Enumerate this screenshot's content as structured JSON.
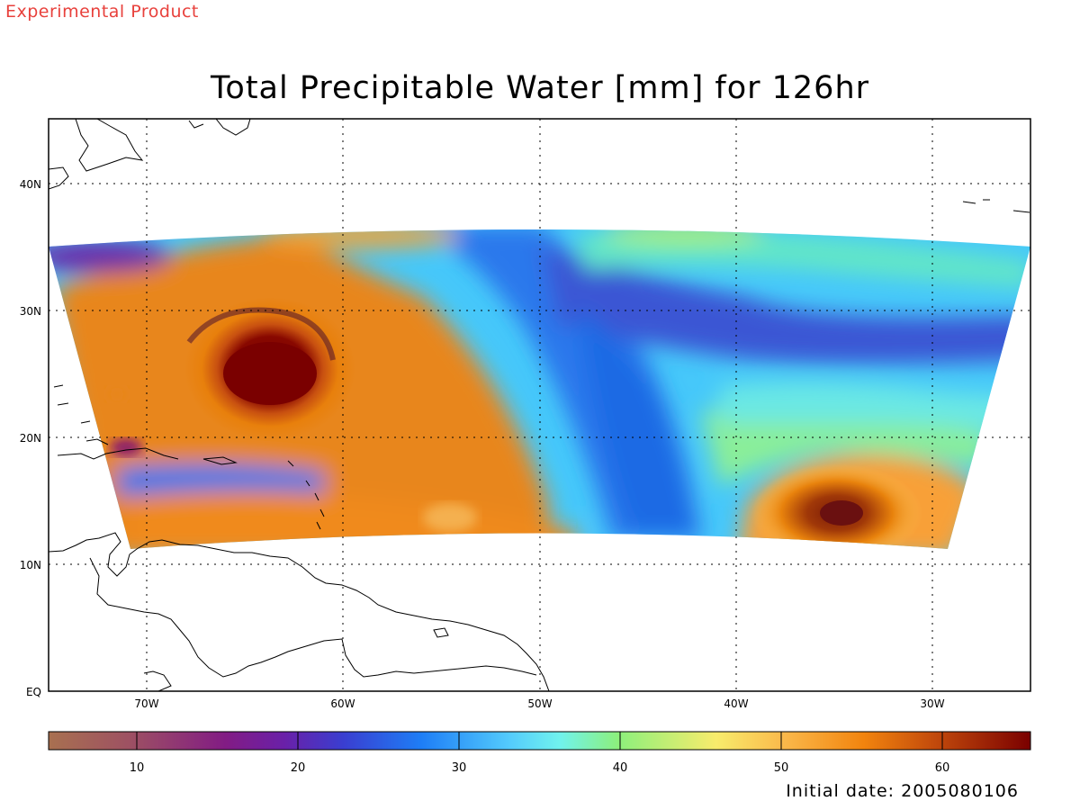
{
  "header": {
    "experimental_label": "Experimental Product",
    "title": "Total Precipitable Water [mm] for 126hr"
  },
  "map": {
    "lon_range": [
      -75,
      -25
    ],
    "lat_range": [
      0,
      45
    ],
    "lat_labels": [
      "EQ",
      "10N",
      "20N",
      "30N",
      "40N"
    ],
    "lon_labels": [
      "70W",
      "60W",
      "50W",
      "40W",
      "30W"
    ],
    "grid": "dotted"
  },
  "colorbar": {
    "range": [
      5,
      66
    ],
    "tick_labels": [
      "10",
      "20",
      "30",
      "40",
      "50",
      "60"
    ],
    "colors": [
      "#a87050",
      "#a05860",
      "#8e3e78",
      "#7a1e88",
      "#6a20a8",
      "#4038c8",
      "#2a5ae0",
      "#1e7ef6",
      "#32a2fa",
      "#52cafc",
      "#70f2ee",
      "#82f07c",
      "#cef074",
      "#f8e468",
      "#fac050",
      "#f89c2c",
      "#ee7e0c",
      "#c44c0c",
      "#941e06",
      "#7a0000"
    ]
  },
  "footer": {
    "initial_date": "Initial date: 2005080106"
  }
}
